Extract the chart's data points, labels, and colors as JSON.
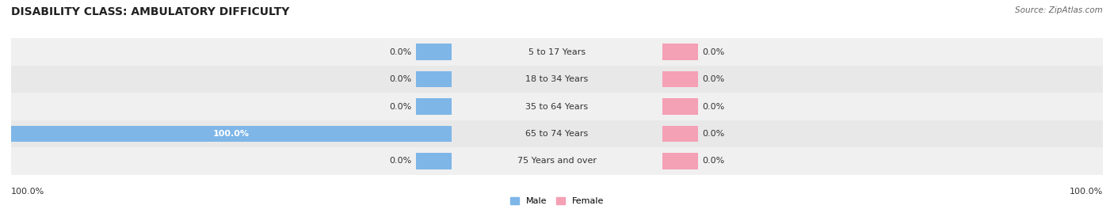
{
  "title": "DISABILITY CLASS: AMBULATORY DIFFICULTY",
  "source": "Source: ZipAtlas.com",
  "categories": [
    "5 to 17 Years",
    "18 to 34 Years",
    "35 to 64 Years",
    "65 to 74 Years",
    "75 Years and over"
  ],
  "male_values": [
    0.0,
    0.0,
    0.0,
    100.0,
    0.0
  ],
  "female_values": [
    0.0,
    0.0,
    0.0,
    0.0,
    0.0
  ],
  "male_color": "#7EB6E8",
  "female_color": "#F4A0B5",
  "male_label": "Male",
  "female_label": "Female",
  "row_bg_odd": "#F0F0F0",
  "row_bg_even": "#E8E8E8",
  "axis_limit": 100.0,
  "left_axis_label": "100.0%",
  "right_axis_label": "100.0%",
  "title_fontsize": 10,
  "label_fontsize": 8,
  "val_fontsize": 8,
  "bar_height": 0.6,
  "background_color": "#FFFFFF",
  "stub_size": 8.0
}
